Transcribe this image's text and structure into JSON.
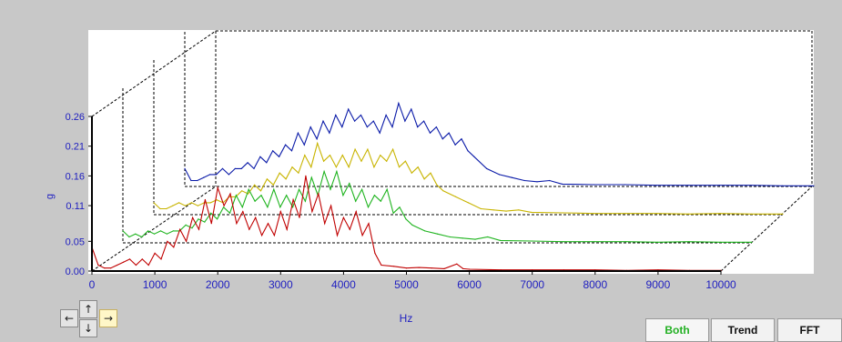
{
  "chart_data": {
    "type": "line",
    "xlabel": "Hz",
    "ylabel": "g",
    "xlim": [
      0,
      10000
    ],
    "ylim": [
      0,
      0.26
    ],
    "x_ticks": [
      "0",
      "1000",
      "2000",
      "3000",
      "4000",
      "5000",
      "6000",
      "7000",
      "8000",
      "9000",
      "10000"
    ],
    "y_ticks": [
      "0.00",
      "0.05",
      "0.11",
      "0.16",
      "0.21",
      "0.26"
    ],
    "grid": false,
    "legend": "none",
    "view": "3d-waterfall",
    "series": [
      {
        "color": "#c00000",
        "x": [
          0,
          100,
          200,
          300,
          400,
          500,
          600,
          700,
          800,
          900,
          1000,
          1100,
          1200,
          1300,
          1400,
          1500,
          1600,
          1700,
          1800,
          1900,
          2000,
          2100,
          2200,
          2300,
          2400,
          2500,
          2600,
          2700,
          2800,
          2900,
          3000,
          3100,
          3200,
          3300,
          3400,
          3500,
          3600,
          3700,
          3800,
          3900,
          4000,
          4100,
          4200,
          4300,
          4400,
          4500,
          4600,
          4800,
          5000,
          5200,
          5400,
          5600,
          5800,
          5900,
          6000,
          6500,
          7000,
          7500,
          8000,
          8500,
          9000,
          9500,
          10000
        ],
        "y": [
          0.04,
          0.01,
          0.005,
          0.005,
          0.01,
          0.015,
          0.02,
          0.01,
          0.02,
          0.01,
          0.03,
          0.02,
          0.05,
          0.04,
          0.07,
          0.05,
          0.09,
          0.07,
          0.12,
          0.08,
          0.14,
          0.11,
          0.13,
          0.08,
          0.1,
          0.07,
          0.09,
          0.06,
          0.08,
          0.06,
          0.1,
          0.07,
          0.12,
          0.09,
          0.16,
          0.1,
          0.13,
          0.08,
          0.11,
          0.06,
          0.09,
          0.07,
          0.1,
          0.06,
          0.08,
          0.03,
          0.01,
          0.008,
          0.005,
          0.006,
          0.005,
          0.004,
          0.012,
          0.004,
          0.003,
          0.002,
          0.002,
          0.002,
          0.002,
          0.001,
          0.002,
          0.001,
          0.001
        ]
      },
      {
        "color": "#1fb41f",
        "x": [
          0,
          100,
          200,
          300,
          400,
          500,
          600,
          700,
          800,
          900,
          1000,
          1100,
          1200,
          1300,
          1400,
          1500,
          1600,
          1700,
          1800,
          1900,
          2000,
          2100,
          2200,
          2300,
          2400,
          2500,
          2600,
          2700,
          2800,
          2900,
          3000,
          3100,
          3200,
          3300,
          3400,
          3500,
          3600,
          3700,
          3800,
          3900,
          4000,
          4100,
          4200,
          4300,
          4400,
          4500,
          4600,
          4800,
          5000,
          5200,
          5400,
          5600,
          5800,
          6000,
          6500,
          7000,
          7500,
          8000,
          8500,
          9000,
          9500,
          10000
        ],
        "y": [
          0.02,
          0.01,
          0.015,
          0.01,
          0.02,
          0.015,
          0.02,
          0.015,
          0.02,
          0.02,
          0.03,
          0.025,
          0.04,
          0.035,
          0.05,
          0.04,
          0.06,
          0.05,
          0.08,
          0.06,
          0.09,
          0.07,
          0.08,
          0.06,
          0.09,
          0.06,
          0.08,
          0.06,
          0.09,
          0.07,
          0.11,
          0.08,
          0.12,
          0.09,
          0.12,
          0.08,
          0.1,
          0.07,
          0.09,
          0.06,
          0.08,
          0.07,
          0.09,
          0.05,
          0.06,
          0.04,
          0.03,
          0.02,
          0.015,
          0.01,
          0.008,
          0.006,
          0.01,
          0.004,
          0.003,
          0.002,
          0.002,
          0.002,
          0.001,
          0.002,
          0.001,
          0.001
        ]
      },
      {
        "color": "#c8b400",
        "x": [
          0,
          100,
          200,
          300,
          400,
          500,
          600,
          700,
          800,
          900,
          1000,
          1100,
          1200,
          1300,
          1400,
          1500,
          1600,
          1700,
          1800,
          1900,
          2000,
          2100,
          2200,
          2300,
          2400,
          2500,
          2600,
          2700,
          2800,
          2900,
          3000,
          3100,
          3200,
          3300,
          3400,
          3500,
          3600,
          3700,
          3800,
          3900,
          4000,
          4100,
          4200,
          4300,
          4400,
          4500,
          4600,
          4800,
          5000,
          5200,
          5400,
          5600,
          5800,
          6000,
          6500,
          7000,
          7500,
          8000,
          8500,
          9000,
          9500,
          10000
        ],
        "y": [
          0.02,
          0.01,
          0.01,
          0.015,
          0.02,
          0.015,
          0.02,
          0.015,
          0.02,
          0.02,
          0.025,
          0.02,
          0.03,
          0.03,
          0.04,
          0.035,
          0.05,
          0.04,
          0.06,
          0.05,
          0.07,
          0.06,
          0.08,
          0.07,
          0.1,
          0.08,
          0.12,
          0.09,
          0.1,
          0.08,
          0.1,
          0.08,
          0.11,
          0.09,
          0.11,
          0.08,
          0.1,
          0.09,
          0.11,
          0.08,
          0.09,
          0.07,
          0.08,
          0.06,
          0.07,
          0.05,
          0.04,
          0.03,
          0.02,
          0.01,
          0.008,
          0.006,
          0.008,
          0.004,
          0.003,
          0.002,
          0.002,
          0.002,
          0.001,
          0.002,
          0.001,
          0.001
        ]
      },
      {
        "color": "#0a1aa8",
        "x": [
          0,
          100,
          200,
          300,
          400,
          500,
          600,
          700,
          800,
          900,
          1000,
          1100,
          1200,
          1300,
          1400,
          1500,
          1600,
          1700,
          1800,
          1900,
          2000,
          2100,
          2200,
          2300,
          2400,
          2500,
          2600,
          2700,
          2800,
          2900,
          3000,
          3100,
          3200,
          3300,
          3400,
          3500,
          3600,
          3700,
          3800,
          3900,
          4000,
          4100,
          4200,
          4300,
          4400,
          4500,
          4600,
          4800,
          5000,
          5200,
          5400,
          5600,
          5800,
          6000,
          6500,
          7000,
          7500,
          8000,
          8500,
          9000,
          9500,
          10000
        ],
        "y": [
          0.03,
          0.01,
          0.01,
          0.015,
          0.02,
          0.02,
          0.03,
          0.02,
          0.03,
          0.03,
          0.04,
          0.03,
          0.05,
          0.04,
          0.06,
          0.05,
          0.07,
          0.06,
          0.09,
          0.07,
          0.1,
          0.08,
          0.11,
          0.09,
          0.12,
          0.1,
          0.13,
          0.11,
          0.12,
          0.1,
          0.11,
          0.09,
          0.12,
          0.1,
          0.14,
          0.11,
          0.13,
          0.1,
          0.11,
          0.09,
          0.1,
          0.08,
          0.09,
          0.07,
          0.08,
          0.06,
          0.05,
          0.03,
          0.02,
          0.015,
          0.01,
          0.008,
          0.01,
          0.004,
          0.003,
          0.003,
          0.002,
          0.002,
          0.002,
          0.002,
          0.001,
          0.001
        ]
      }
    ]
  },
  "controls": {
    "arrow_up": "↑",
    "arrow_down": "↓",
    "arrow_left": "←",
    "arrow_right": "→"
  },
  "tabs": [
    {
      "label": "Both",
      "selected": true
    },
    {
      "label": "Trend",
      "selected": false
    },
    {
      "label": "FFT",
      "selected": false
    }
  ]
}
